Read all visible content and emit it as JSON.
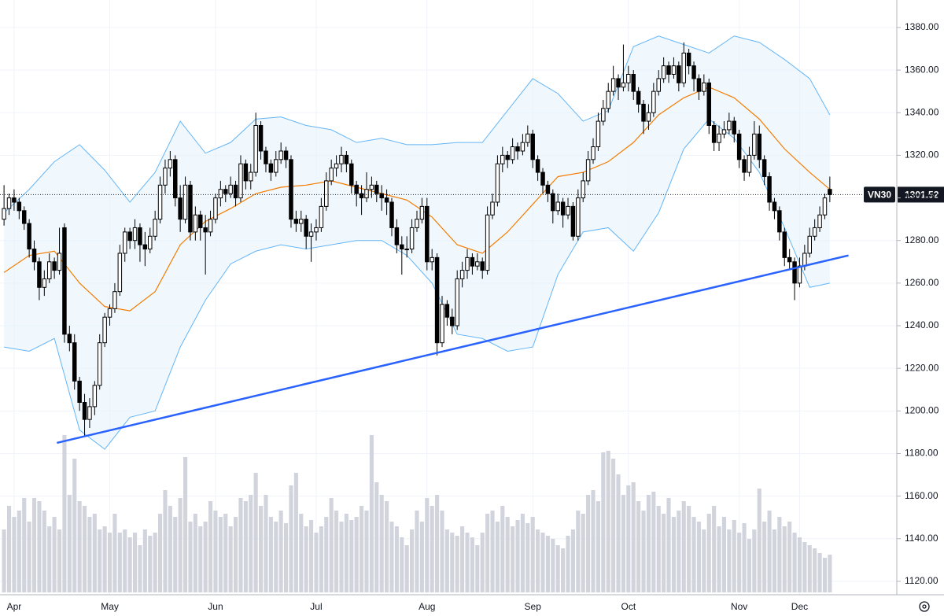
{
  "chart_data": {
    "type": "candlestick",
    "symbol": "VN30",
    "grid": true,
    "xlim": [
      -0.8,
      177.3
    ],
    "ylim": [
      1113.7,
      1392.9
    ],
    "yticks": [
      {
        "value": 1120,
        "label": "1120.00"
      },
      {
        "value": 1140,
        "label": "1140.00"
      },
      {
        "value": 1160,
        "label": "1160.00"
      },
      {
        "value": 1180,
        "label": "1180.00"
      },
      {
        "value": 1200,
        "label": "1200.00"
      },
      {
        "value": 1220,
        "label": "1220.00"
      },
      {
        "value": 1240,
        "label": "1240.00"
      },
      {
        "value": 1260,
        "label": "1260.00"
      },
      {
        "value": 1280,
        "label": "1280.00"
      },
      {
        "value": 1300,
        "label": "1300.00"
      },
      {
        "value": 1320,
        "label": "1320.00"
      },
      {
        "value": 1340,
        "label": "1340.00"
      },
      {
        "value": 1360,
        "label": "1360.00"
      },
      {
        "value": 1380,
        "label": "1380.00"
      }
    ],
    "xticks": [
      {
        "value": 2,
        "label": "Apr"
      },
      {
        "value": 21,
        "label": "May"
      },
      {
        "value": 42,
        "label": "Jun"
      },
      {
        "value": 62,
        "label": "Jul"
      },
      {
        "value": 84,
        "label": "Aug"
      },
      {
        "value": 105,
        "label": "Sep"
      },
      {
        "value": 124,
        "label": "Oct"
      },
      {
        "value": 146,
        "label": "Nov"
      },
      {
        "value": 158,
        "label": "Dec"
      }
    ],
    "up_color": "#ffffff",
    "down_color": "#000000",
    "candles": [
      [
        1290,
        1306,
        1287,
        1295
      ],
      [
        1295,
        1302,
        1292,
        1300
      ],
      [
        1300,
        1304,
        1294,
        1298
      ],
      [
        1298,
        1300,
        1290,
        1294
      ],
      [
        1294,
        1296,
        1285,
        1288
      ],
      [
        1288,
        1290,
        1272,
        1276
      ],
      [
        1276,
        1280,
        1266,
        1270
      ],
      [
        1270,
        1272,
        1252,
        1258
      ],
      [
        1258,
        1266,
        1254,
        1262
      ],
      [
        1262,
        1274,
        1260,
        1270
      ],
      [
        1270,
        1272,
        1262,
        1266
      ],
      [
        1266,
        1286,
        1264,
        1274
      ],
      [
        1286,
        1288,
        1232,
        1236
      ],
      [
        1236,
        1240,
        1228,
        1232
      ],
      [
        1232,
        1236,
        1210,
        1214
      ],
      [
        1214,
        1216,
        1200,
        1204
      ],
      [
        1204,
        1208,
        1188,
        1196
      ],
      [
        1196,
        1206,
        1192,
        1202
      ],
      [
        1202,
        1214,
        1198,
        1212
      ],
      [
        1212,
        1236,
        1210,
        1232
      ],
      [
        1232,
        1246,
        1230,
        1244
      ],
      [
        1244,
        1250,
        1240,
        1248
      ],
      [
        1248,
        1260,
        1246,
        1256
      ],
      [
        1256,
        1278,
        1254,
        1274
      ],
      [
        1274,
        1286,
        1270,
        1284
      ],
      [
        1284,
        1286,
        1276,
        1280
      ],
      [
        1280,
        1290,
        1276,
        1286
      ],
      [
        1286,
        1288,
        1270,
        1278
      ],
      [
        1278,
        1284,
        1268,
        1276
      ],
      [
        1276,
        1286,
        1274,
        1282
      ],
      [
        1282,
        1294,
        1280,
        1290
      ],
      [
        1290,
        1310,
        1288,
        1306
      ],
      [
        1306,
        1318,
        1302,
        1314
      ],
      [
        1314,
        1322,
        1310,
        1318
      ],
      [
        1318,
        1320,
        1296,
        1300
      ],
      [
        1300,
        1306,
        1284,
        1290
      ],
      [
        1290,
        1310,
        1288,
        1306
      ],
      [
        1306,
        1308,
        1280,
        1284
      ],
      [
        1284,
        1296,
        1280,
        1292
      ],
      [
        1292,
        1294,
        1280,
        1286
      ],
      [
        1286,
        1292,
        1264,
        1284
      ],
      [
        1284,
        1294,
        1282,
        1290
      ],
      [
        1290,
        1302,
        1288,
        1300
      ],
      [
        1300,
        1308,
        1296,
        1304
      ],
      [
        1304,
        1306,
        1298,
        1302
      ],
      [
        1302,
        1310,
        1300,
        1306
      ],
      [
        1306,
        1308,
        1296,
        1300
      ],
      [
        1300,
        1320,
        1298,
        1316
      ],
      [
        1316,
        1318,
        1304,
        1308
      ],
      [
        1308,
        1316,
        1304,
        1312
      ],
      [
        1312,
        1340,
        1310,
        1334
      ],
      [
        1334,
        1336,
        1318,
        1322
      ],
      [
        1322,
        1324,
        1312,
        1316
      ],
      [
        1316,
        1318,
        1308,
        1312
      ],
      [
        1312,
        1322,
        1310,
        1318
      ],
      [
        1318,
        1326,
        1316,
        1322
      ],
      [
        1322,
        1324,
        1314,
        1318
      ],
      [
        1318,
        1320,
        1286,
        1290
      ],
      [
        1290,
        1294,
        1284,
        1288
      ],
      [
        1288,
        1294,
        1284,
        1290
      ],
      [
        1290,
        1292,
        1276,
        1282
      ],
      [
        1282,
        1288,
        1270,
        1284
      ],
      [
        1284,
        1290,
        1280,
        1286
      ],
      [
        1286,
        1300,
        1284,
        1296
      ],
      [
        1296,
        1312,
        1294,
        1308
      ],
      [
        1308,
        1318,
        1306,
        1314
      ],
      [
        1314,
        1320,
        1310,
        1316
      ],
      [
        1316,
        1324,
        1312,
        1320
      ],
      [
        1320,
        1322,
        1312,
        1316
      ],
      [
        1316,
        1318,
        1302,
        1306
      ],
      [
        1306,
        1308,
        1296,
        1302
      ],
      [
        1302,
        1306,
        1292,
        1300
      ],
      [
        1300,
        1312,
        1298,
        1304
      ],
      [
        1304,
        1310,
        1300,
        1306
      ],
      [
        1306,
        1308,
        1298,
        1302
      ],
      [
        1302,
        1306,
        1294,
        1300
      ],
      [
        1300,
        1304,
        1292,
        1298
      ],
      [
        1298,
        1300,
        1282,
        1286
      ],
      [
        1286,
        1290,
        1274,
        1278
      ],
      [
        1278,
        1282,
        1264,
        1276
      ],
      [
        1276,
        1282,
        1272,
        1276
      ],
      [
        1276,
        1290,
        1274,
        1286
      ],
      [
        1286,
        1294,
        1284,
        1290
      ],
      [
        1290,
        1300,
        1288,
        1296
      ],
      [
        1296,
        1300,
        1266,
        1270
      ],
      [
        1270,
        1276,
        1266,
        1272
      ],
      [
        1272,
        1274,
        1226,
        1232
      ],
      [
        1232,
        1254,
        1230,
        1250
      ],
      [
        1250,
        1252,
        1240,
        1244
      ],
      [
        1244,
        1248,
        1236,
        1240
      ],
      [
        1240,
        1266,
        1238,
        1262
      ],
      [
        1262,
        1270,
        1258,
        1266
      ],
      [
        1266,
        1276,
        1262,
        1272
      ],
      [
        1272,
        1274,
        1264,
        1268
      ],
      [
        1268,
        1274,
        1266,
        1270
      ],
      [
        1270,
        1272,
        1262,
        1266
      ],
      [
        1266,
        1296,
        1264,
        1292
      ],
      [
        1292,
        1302,
        1290,
        1298
      ],
      [
        1298,
        1320,
        1296,
        1316
      ],
      [
        1316,
        1324,
        1312,
        1320
      ],
      [
        1320,
        1322,
        1314,
        1318
      ],
      [
        1318,
        1328,
        1316,
        1324
      ],
      [
        1324,
        1326,
        1318,
        1322
      ],
      [
        1322,
        1330,
        1320,
        1326
      ],
      [
        1326,
        1334,
        1324,
        1330
      ],
      [
        1330,
        1332,
        1314,
        1318
      ],
      [
        1318,
        1320,
        1308,
        1312
      ],
      [
        1312,
        1314,
        1302,
        1306
      ],
      [
        1306,
        1308,
        1298,
        1302
      ],
      [
        1302,
        1304,
        1288,
        1294
      ],
      [
        1294,
        1302,
        1292,
        1298
      ],
      [
        1298,
        1300,
        1286,
        1292
      ],
      [
        1292,
        1300,
        1290,
        1296
      ],
      [
        1296,
        1298,
        1280,
        1282
      ],
      [
        1282,
        1304,
        1280,
        1300
      ],
      [
        1300,
        1312,
        1298,
        1308
      ],
      [
        1308,
        1322,
        1306,
        1318
      ],
      [
        1318,
        1328,
        1316,
        1324
      ],
      [
        1324,
        1340,
        1322,
        1336
      ],
      [
        1336,
        1346,
        1334,
        1342
      ],
      [
        1342,
        1354,
        1340,
        1350
      ],
      [
        1350,
        1362,
        1348,
        1356
      ],
      [
        1356,
        1358,
        1346,
        1352
      ],
      [
        1352,
        1372,
        1350,
        1354
      ],
      [
        1354,
        1362,
        1350,
        1358
      ],
      [
        1358,
        1360,
        1346,
        1350
      ],
      [
        1350,
        1352,
        1340,
        1344
      ],
      [
        1344,
        1346,
        1330,
        1336
      ],
      [
        1336,
        1344,
        1332,
        1340
      ],
      [
        1340,
        1354,
        1338,
        1350
      ],
      [
        1350,
        1360,
        1348,
        1356
      ],
      [
        1356,
        1366,
        1354,
        1362
      ],
      [
        1362,
        1364,
        1354,
        1358
      ],
      [
        1358,
        1366,
        1356,
        1362
      ],
      [
        1362,
        1364,
        1350,
        1354
      ],
      [
        1354,
        1373,
        1352,
        1368
      ],
      [
        1368,
        1370,
        1358,
        1362
      ],
      [
        1362,
        1364,
        1350,
        1356
      ],
      [
        1356,
        1358,
        1346,
        1350
      ],
      [
        1350,
        1358,
        1348,
        1354
      ],
      [
        1354,
        1356,
        1330,
        1334
      ],
      [
        1334,
        1336,
        1322,
        1326
      ],
      [
        1326,
        1334,
        1322,
        1330
      ],
      [
        1330,
        1336,
        1328,
        1332
      ],
      [
        1332,
        1340,
        1330,
        1336
      ],
      [
        1336,
        1338,
        1326,
        1330
      ],
      [
        1330,
        1332,
        1314,
        1318
      ],
      [
        1318,
        1320,
        1308,
        1312
      ],
      [
        1312,
        1324,
        1310,
        1320
      ],
      [
        1320,
        1336,
        1318,
        1330
      ],
      [
        1330,
        1334,
        1314,
        1318
      ],
      [
        1318,
        1320,
        1306,
        1310
      ],
      [
        1310,
        1312,
        1294,
        1298
      ],
      [
        1298,
        1300,
        1290,
        1294
      ],
      [
        1294,
        1296,
        1280,
        1284
      ],
      [
        1284,
        1286,
        1268,
        1272
      ],
      [
        1272,
        1276,
        1266,
        1270
      ],
      [
        1270,
        1272,
        1252,
        1260
      ],
      [
        1260,
        1272,
        1258,
        1268
      ],
      [
        1268,
        1278,
        1266,
        1274
      ],
      [
        1274,
        1286,
        1272,
        1282
      ],
      [
        1282,
        1290,
        1280,
        1286
      ],
      [
        1286,
        1296,
        1284,
        1292
      ],
      [
        1292,
        1302,
        1290,
        1300
      ],
      [
        1304,
        1310,
        1298,
        1301.52
      ]
    ],
    "volume": {
      "color": "#d1d4dc",
      "lim": [
        0,
        100
      ],
      "values": [
        40,
        55,
        48,
        52,
        60,
        45,
        60,
        58,
        52,
        42,
        48,
        40,
        100,
        62,
        85,
        58,
        55,
        48,
        50,
        40,
        42,
        38,
        50,
        38,
        40,
        35,
        38,
        30,
        40,
        36,
        38,
        50,
        65,
        55,
        48,
        60,
        86,
        45,
        50,
        42,
        45,
        58,
        52,
        48,
        50,
        42,
        48,
        60,
        58,
        62,
        76,
        55,
        62,
        48,
        45,
        52,
        44,
        68,
        76,
        50,
        42,
        46,
        38,
        42,
        48,
        60,
        52,
        45,
        50,
        46,
        48,
        55,
        52,
        100,
        70,
        62,
        58,
        45,
        42,
        35,
        30,
        40,
        52,
        45,
        60,
        55,
        62,
        52,
        40,
        38,
        36,
        42,
        38,
        35,
        30,
        38,
        50,
        52,
        45,
        55,
        48,
        42,
        46,
        50,
        44,
        48,
        40,
        38,
        36,
        34,
        30,
        28,
        36,
        40,
        52,
        50,
        62,
        65,
        58,
        89,
        90,
        85,
        75,
        62,
        68,
        70,
        58,
        52,
        62,
        64,
        55,
        50,
        60,
        48,
        52,
        58,
        55,
        48,
        45,
        40,
        50,
        55,
        42,
        48,
        40,
        46,
        38,
        44,
        34,
        40,
        66,
        45,
        52,
        40,
        48,
        42,
        45,
        38,
        35,
        32,
        30,
        28,
        25,
        22,
        24
      ]
    },
    "overlay_x": [
      0,
      5,
      10,
      15,
      20,
      25,
      30,
      35,
      40,
      45,
      50,
      55,
      60,
      65,
      70,
      75,
      80,
      85,
      90,
      95,
      100,
      105,
      110,
      115,
      120,
      125,
      130,
      135,
      140,
      145,
      150,
      155,
      160,
      164
    ],
    "moving_average": {
      "color": "#f57c00",
      "values": [
        1265,
        1273,
        1275,
        1260,
        1249,
        1247,
        1256,
        1278,
        1289,
        1295,
        1302,
        1305,
        1306,
        1308,
        1305,
        1302,
        1299,
        1291,
        1278,
        1274,
        1284,
        1297,
        1310,
        1312,
        1317,
        1326,
        1339,
        1347,
        1352,
        1347,
        1337,
        1323,
        1312,
        1304
      ]
    },
    "band_color": "#64b5f6",
    "band_fill": "#e3f2fd",
    "bollinger_upper": [
      1293,
      1304,
      1317,
      1325,
      1313,
      1298,
      1312,
      1336,
      1321,
      1326,
      1337,
      1338,
      1334,
      1332,
      1326,
      1328,
      1325,
      1325,
      1326,
      1326,
      1341,
      1356,
      1349,
      1336,
      1341,
      1371,
      1376,
      1372,
      1368,
      1376,
      1373,
      1365,
      1356,
      1339
    ],
    "bollinger_lower": [
      1230,
      1228,
      1234,
      1191,
      1182,
      1197,
      1200,
      1230,
      1252,
      1269,
      1275,
      1278,
      1276,
      1278,
      1280,
      1280,
      1273,
      1260,
      1236,
      1234,
      1228,
      1230,
      1264,
      1284,
      1286,
      1275,
      1293,
      1323,
      1337,
      1328,
      1312,
      1286,
      1258,
      1260
    ],
    "trendline": {
      "color": "#2962ff",
      "x": [
        10.5,
        167.7
      ],
      "values": [
        1185,
        1273
      ]
    }
  }
}
